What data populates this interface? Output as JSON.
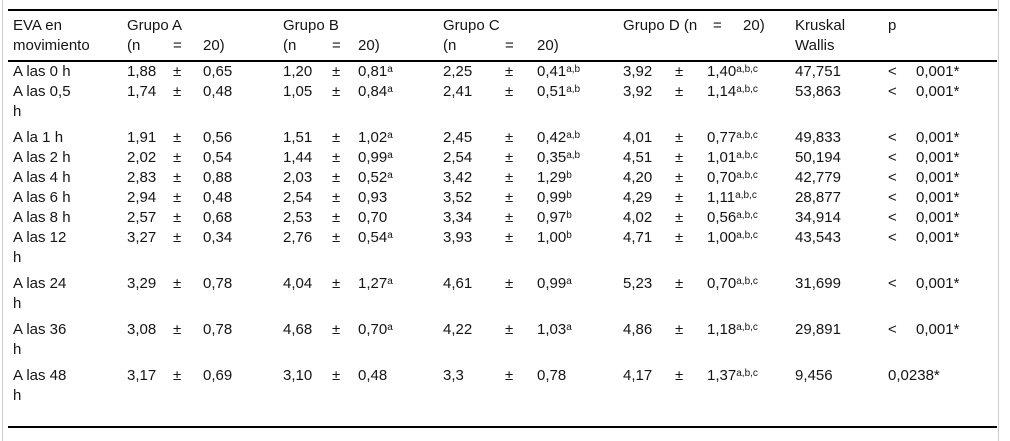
{
  "colors": {
    "background": "#ffffff",
    "rule": "#000000",
    "frame_line": "#cccccc",
    "text": "#151515"
  },
  "table": {
    "pm": "±",
    "header": {
      "label": "EVA en\nmovimiento",
      "groups_abc": [
        {
          "title": "Grupo A",
          "n": "(n",
          "eq": "=",
          "n20": "20)"
        },
        {
          "title": "Grupo B",
          "n": "(n",
          "eq": "=",
          "n20": "20)"
        },
        {
          "title": "Grupo C",
          "n": "(n",
          "eq": "=",
          "n20": "20)"
        }
      ],
      "group_d": {
        "title": "Grupo D (n",
        "eq": "=",
        "n20": "20)"
      },
      "kruskal_wallis": "Kruskal\nWallis",
      "p": "p"
    },
    "rows": [
      {
        "label": "A las 0 h",
        "a": [
          "1,88",
          "0,65",
          ""
        ],
        "b": [
          "1,20",
          "0,81",
          "a"
        ],
        "c": [
          "2,25",
          "0,41",
          "a,b"
        ],
        "d": [
          "3,92",
          "1,40",
          "a,b,c"
        ],
        "kw": "47,751",
        "p_lt": "<",
        "p": "0,001*"
      },
      {
        "label": "A las 0,5\nh",
        "a": [
          "1,74",
          "0,48",
          ""
        ],
        "b": [
          "1,05",
          "0,84",
          "a"
        ],
        "c": [
          "2,41",
          "0,51",
          "a,b"
        ],
        "d": [
          "3,92",
          "1,14",
          "a,b,c"
        ],
        "kw": "53,863",
        "p_lt": "<",
        "p": "0,001*"
      },
      {
        "label": "A la 1 h",
        "a": [
          "1,91",
          "0,56",
          ""
        ],
        "b": [
          "1,51",
          "1,02",
          "a"
        ],
        "c": [
          "2,45",
          "0,42",
          "a,b"
        ],
        "d": [
          "4,01",
          "0,77",
          "a,b,c"
        ],
        "kw": "49,833",
        "p_lt": "<",
        "p": "0,001*"
      },
      {
        "label": "A las 2 h",
        "a": [
          "2,02",
          "0,54",
          ""
        ],
        "b": [
          "1,44",
          "0,99",
          "a"
        ],
        "c": [
          "2,54",
          "0,35",
          "a,b"
        ],
        "d": [
          "4,51",
          "1,01",
          "a,b,c"
        ],
        "kw": "50,194",
        "p_lt": "<",
        "p": "0,001*"
      },
      {
        "label": "A las 4 h",
        "a": [
          "2,83",
          "0,88",
          ""
        ],
        "b": [
          "2,03",
          "0,52",
          "a"
        ],
        "c": [
          "3,42",
          "1,29",
          "b"
        ],
        "d": [
          "4,20",
          "0,70",
          "a,b,c"
        ],
        "kw": "42,779",
        "p_lt": "<",
        "p": "0,001*"
      },
      {
        "label": "A las 6 h",
        "a": [
          "2,94",
          "0,48",
          ""
        ],
        "b": [
          "2,54",
          "0,93",
          ""
        ],
        "c": [
          "3,52",
          "0,99",
          "b"
        ],
        "d": [
          "4,29",
          "1,11",
          "a,b,c"
        ],
        "kw": "28,877",
        "p_lt": "<",
        "p": "0,001*"
      },
      {
        "label": "A las 8 h",
        "a": [
          "2,57",
          "0,68",
          ""
        ],
        "b": [
          "2,53",
          "0,70",
          ""
        ],
        "c": [
          "3,34",
          "0,97",
          "b"
        ],
        "d": [
          "4,02",
          "0,56",
          "a,b,c"
        ],
        "kw": "34,914",
        "p_lt": "<",
        "p": "0,001*"
      },
      {
        "label": "A las 12\nh",
        "a": [
          "3,27",
          "0,34",
          ""
        ],
        "b": [
          "2,76",
          "0,54",
          "a"
        ],
        "c": [
          "3,93",
          "1,00",
          "b"
        ],
        "d": [
          "4,71",
          "1,00",
          "a,b,c"
        ],
        "kw": "43,543",
        "p_lt": "<",
        "p": "0,001*"
      },
      {
        "label": "A las 24\nh",
        "a": [
          "3,29",
          "0,78",
          ""
        ],
        "b": [
          "4,04",
          "1,27",
          "a"
        ],
        "c": [
          "4,61",
          "0,99",
          "a"
        ],
        "d": [
          "5,23",
          "0,70",
          "a,b,c"
        ],
        "kw": "31,699",
        "p_lt": "<",
        "p": "0,001*"
      },
      {
        "label": "A las 36\nh",
        "a": [
          "3,08",
          "0,78",
          ""
        ],
        "b": [
          "4,68",
          "0,70",
          "a"
        ],
        "c": [
          "4,22",
          "1,03",
          "a"
        ],
        "d": [
          "4,86",
          "1,18",
          "a,b,c"
        ],
        "kw": "29,891",
        "p_lt": "<",
        "p": "0,001*"
      },
      {
        "label": "A las 48\nh",
        "a": [
          "3,17",
          "0,69",
          ""
        ],
        "b": [
          "3,10",
          "0,48",
          ""
        ],
        "c": [
          "3,3",
          "0,78",
          ""
        ],
        "d": [
          "4,17",
          "1,37",
          "a,b,c"
        ],
        "kw": "9,456",
        "p_lt": "",
        "p": "0,0238*"
      }
    ]
  }
}
